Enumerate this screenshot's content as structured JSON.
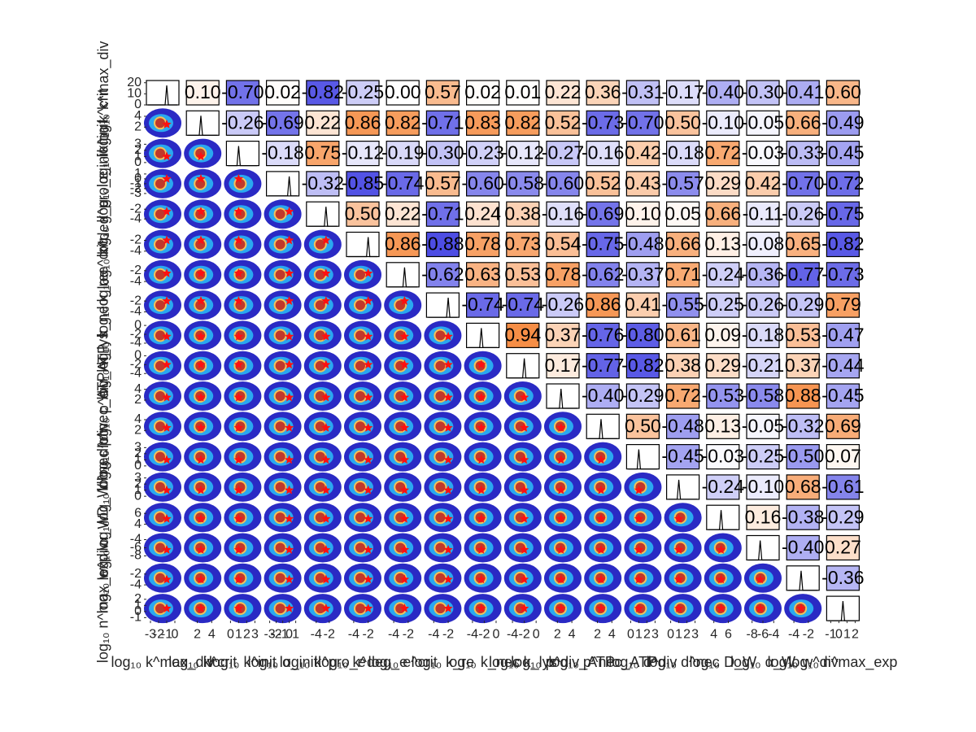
{
  "chart_data": {
    "type": "pairplot",
    "variables": [
      {
        "label": "log₁₀ k^max_div",
        "lim": [
          -3.5,
          0.5
        ],
        "ticks": [
          -3,
          -2,
          -1,
          0
        ],
        "truth": -1
      },
      {
        "label": "log₁₀ k^crit",
        "lim": [
          0.5,
          5
        ],
        "ticks": [
          2,
          4
        ],
        "truth": 2.5
      },
      {
        "label": "log₁₀ k^init",
        "lim": [
          -0.5,
          3.5
        ],
        "ticks": [
          0,
          1,
          2,
          3
        ],
        "truth": 1
      },
      {
        "label": "log₁₀ α_init",
        "lim": [
          -3.5,
          1.5
        ],
        "ticks": [
          -3,
          -2,
          -1,
          0,
          1
        ],
        "truth": 0
      },
      {
        "label": "log₁₀ k^pro_e",
        "lim": [
          -5.5,
          -0.5
        ],
        "ticks": [
          -4,
          -2
        ],
        "truth": -2.5
      },
      {
        "label": "log₁₀ k^deg_e",
        "lim": [
          -5,
          -0.5
        ],
        "ticks": [
          -4,
          -2
        ],
        "truth": -2
      },
      {
        "label": "log₁₀ e^crit",
        "lim": [
          -5,
          -0.5
        ],
        "ticks": [
          -4,
          -2
        ],
        "truth": -2.5
      },
      {
        "label": "log₁₀ k_re",
        "lim": [
          -5,
          -0.5
        ],
        "ticks": [
          -4,
          -2
        ],
        "truth": -2
      },
      {
        "label": "log₁₀ k_nec",
        "lim": [
          -5,
          0.5
        ],
        "ticks": [
          -4,
          -2,
          0
        ],
        "truth": -2.5
      },
      {
        "label": "log₁₀ k_lys",
        "lim": [
          -5,
          0.5
        ],
        "ticks": [
          -4,
          -2,
          0
        ],
        "truth": -2
      },
      {
        "label": "log₁₀ p^div_ATP",
        "lim": [
          0.5,
          5
        ],
        "ticks": [
          2,
          4
        ],
        "truth": 2.5
      },
      {
        "label": "log₁₀ p^nec_ATP",
        "lim": [
          0.5,
          5
        ],
        "ticks": [
          2,
          4
        ],
        "truth": 2.5
      },
      {
        "label": "log₁₀ d^div",
        "lim": [
          -0.5,
          3.5
        ],
        "ticks": [
          0,
          1,
          2,
          3
        ],
        "truth": 1
      },
      {
        "label": "log₁₀ d^nec",
        "lim": [
          -0.5,
          3.5
        ],
        "ticks": [
          0,
          1,
          2,
          3
        ],
        "truth": 1
      },
      {
        "label": "log₁₀ D_W",
        "lim": [
          3,
          7.5
        ],
        "ticks": [
          4,
          6
        ],
        "truth": 5
      },
      {
        "label": "log₁₀ α_W",
        "lim": [
          -9,
          -3
        ],
        "ticks": [
          -8,
          -6,
          -4
        ],
        "truth": -6.5
      },
      {
        "label": "log₁₀ w^div",
        "lim": [
          -5,
          -0.5
        ],
        "ticks": [
          -4,
          -2
        ],
        "truth": -3
      },
      {
        "label": "log₁₀ n^max_exp",
        "lim": [
          -1.5,
          2.5
        ],
        "ticks": [
          -1,
          0,
          1,
          2
        ],
        "truth": 0.5
      }
    ],
    "diag_lim": [
      0,
      22
    ],
    "diag_ticks": [
      0,
      10,
      20
    ],
    "correlations": [
      [
        0.1,
        -0.7,
        0.02,
        -0.82,
        -0.25,
        0,
        0.57,
        0.02,
        0.01,
        0.22,
        0.36,
        -0.31,
        -0.17,
        -0.4,
        -0.3,
        -0.41,
        0.6
      ],
      [
        -0.26,
        -0.69,
        0.22,
        0.86,
        0.82,
        -0.71,
        0.83,
        0.82,
        0.52,
        -0.73,
        -0.7,
        0.5,
        -0.1,
        -0.05,
        0.66,
        -0.49
      ],
      [
        -0.18,
        0.75,
        -0.12,
        -0.19,
        -0.3,
        -0.23,
        -0.12,
        -0.27,
        -0.16,
        0.42,
        -0.18,
        0.72,
        -0.03,
        -0.33,
        -0.45
      ],
      [
        -0.32,
        -0.85,
        -0.74,
        0.57,
        -0.6,
        -0.58,
        -0.6,
        0.52,
        0.43,
        -0.57,
        0.29,
        0.42,
        -0.7,
        -0.72
      ],
      [
        0.5,
        0.22,
        -0.71,
        0.24,
        0.38,
        -0.16,
        -0.69,
        0.1,
        0.05,
        0.66,
        -0.11,
        -0.26,
        -0.75
      ],
      [
        0.86,
        -0.88,
        0.78,
        0.73,
        0.54,
        -0.75,
        -0.48,
        0.66,
        0.13,
        -0.08,
        0.65,
        -0.82
      ],
      [
        -0.62,
        0.63,
        0.53,
        0.78,
        -0.62,
        -0.37,
        0.71,
        -0.24,
        -0.36,
        -0.77,
        -0.73
      ],
      [
        -0.74,
        -0.74,
        -0.26,
        0.86,
        0.41,
        -0.55,
        -0.25,
        -0.26,
        -0.29,
        0.79
      ],
      [
        0.94,
        0.37,
        -0.76,
        -0.8,
        0.61,
        0.09,
        -0.18,
        0.53,
        -0.47
      ],
      [
        0.17,
        -0.77,
        -0.82,
        0.38,
        0.29,
        -0.21,
        0.37,
        -0.44
      ],
      [
        -0.4,
        -0.29,
        0.72,
        -0.53,
        -0.58,
        0.88,
        -0.45
      ],
      [
        0.5,
        -0.48,
        0.13,
        -0.05,
        -0.32,
        0.69
      ],
      [
        -0.45,
        -0.03,
        -0.25,
        -0.5,
        0.07
      ],
      [
        -0.24,
        -0.1,
        0.68,
        -0.61
      ],
      [
        0.16,
        -0.38,
        -0.29
      ],
      [
        -0.4,
        0.27
      ],
      [
        -0.36
      ]
    ],
    "correlation_labels": [
      [
        "0.10",
        "-0.70",
        "0.02",
        "-0.82",
        "-0.25",
        "0.00",
        "0.57",
        "0.02",
        "0.01",
        "0.22",
        "0.36",
        "-0.31",
        "-0.17",
        "-0.40",
        "-0.30",
        "-0.41",
        "0.60"
      ],
      [
        "-0.26",
        "-0.69",
        "0.22",
        "0.86",
        "0.82",
        "-0.71",
        "0.83",
        "0.82",
        "0.52",
        "-0.73",
        "-0.70",
        "0.50",
        "-0.10",
        "-0.05",
        "0.66",
        "-0.49"
      ],
      [
        "-0.18",
        "0.75",
        "-0.12",
        "-0.19",
        "-0.30",
        "-0.23",
        "-0.12",
        "-0.27",
        "-0.16",
        "0.42",
        "-0.18",
        "0.72",
        "-0.03",
        "-0.33",
        "-0.45"
      ],
      [
        "-0.32",
        "-0.85",
        "-0.74",
        "0.57",
        "-0.60",
        "-0.58",
        "-0.60",
        "0.52",
        "0.43",
        "-0.57",
        "0.29",
        "0.42",
        "-0.70",
        "-0.72"
      ],
      [
        "0.50",
        "0.22",
        "-0.71",
        "0.24",
        "0.38",
        "-0.16",
        "-0.69",
        "0.10",
        "0.05",
        "0.66",
        "-0.11",
        "-0.26",
        "-0.75"
      ],
      [
        "0.86",
        "-0.88",
        "0.78",
        "0.73",
        "0.54",
        "-0.75",
        "-0.48",
        "0.66",
        "0.13",
        "-0.08",
        "0.65",
        "-0.82"
      ],
      [
        "-0.62",
        "0.63",
        "0.53",
        "0.78",
        "-0.62",
        "-0.37",
        "0.71",
        "-0.24",
        "-0.36",
        "-0.77",
        "-0.73"
      ],
      [
        "-0.74",
        "-0.74",
        "-0.26",
        "0.86",
        "0.41",
        "-0.55",
        "-0.25",
        "-0.26",
        "-0.29",
        "0.79"
      ],
      [
        "0.94",
        "0.37",
        "-0.76",
        "-0.80",
        "0.61",
        "0.09",
        "-0.18",
        "0.53",
        "-0.47"
      ],
      [
        "0.17",
        "-0.77",
        "-0.82",
        "0.38",
        "0.29",
        "-0.21",
        "0.37",
        "-0.44"
      ],
      [
        "-0.40",
        "-0.29",
        "0.72",
        "-0.53",
        "-0.58",
        "0.88",
        "-0.45"
      ],
      [
        "0.50",
        "-0.48",
        "0.13",
        "-0.05",
        "-0.32",
        "0.69"
      ],
      [
        "-0.45",
        "-0.03",
        "-0.25",
        "-0.50",
        "0.07"
      ],
      [
        "-0.24",
        "-0.10",
        "0.68",
        "-0.61"
      ],
      [
        "0.16",
        "-0.38",
        "-0.29"
      ],
      [
        "-0.40",
        "0.27"
      ],
      [
        "-0.36"
      ]
    ],
    "colors": {
      "negative": "#3535e0",
      "positive": "#f5873a",
      "scatter": [
        "#2a2ac4",
        "#2aa8f0",
        "#f2c25a",
        "#c0392b"
      ],
      "truth": "#ff1010"
    }
  }
}
